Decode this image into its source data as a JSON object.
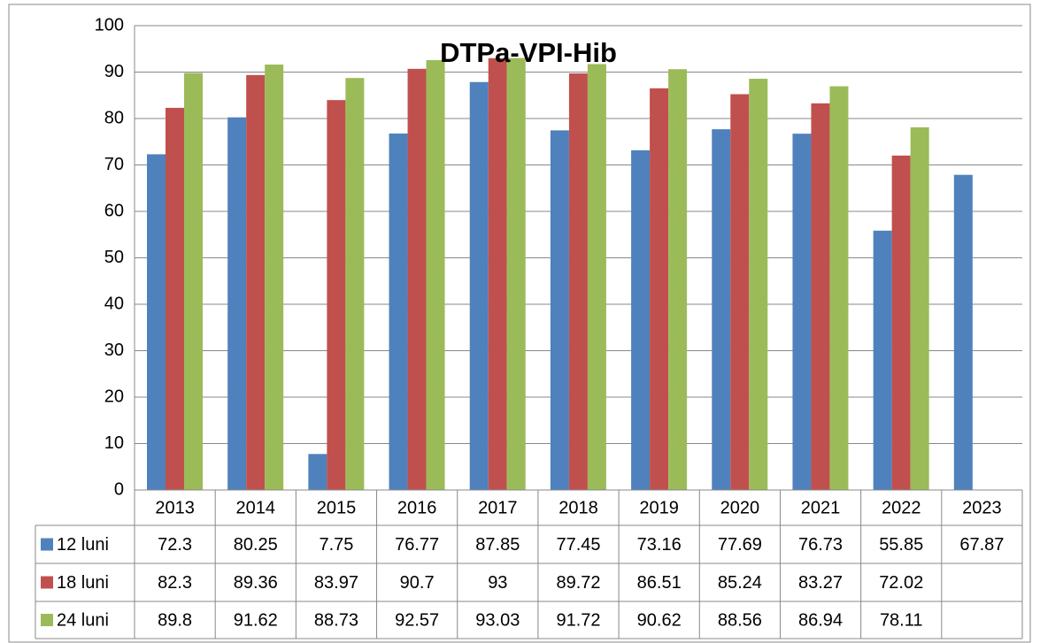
{
  "chart_data": {
    "type": "bar",
    "title": "DTPa-VPI-Hib",
    "categories": [
      "2013",
      "2014",
      "2015",
      "2016",
      "2017",
      "2018",
      "2019",
      "2020",
      "2021",
      "2022",
      "2023"
    ],
    "series": [
      {
        "name": "12 luni",
        "color": "#4f81bd",
        "values": [
          72.3,
          80.25,
          7.75,
          76.77,
          87.85,
          77.45,
          73.16,
          77.69,
          76.73,
          55.85,
          67.87
        ]
      },
      {
        "name": "18 luni",
        "color": "#c0504d",
        "values": [
          82.3,
          89.36,
          83.97,
          90.7,
          93,
          89.72,
          86.51,
          85.24,
          83.27,
          72.02,
          null
        ]
      },
      {
        "name": "24 luni",
        "color": "#9bbb59",
        "values": [
          89.8,
          91.62,
          88.73,
          92.57,
          93.03,
          91.72,
          90.62,
          88.56,
          86.94,
          78.11,
          null
        ]
      }
    ],
    "ylim": [
      0,
      100
    ],
    "yticks": [
      0,
      10,
      20,
      30,
      40,
      50,
      60,
      70,
      80,
      90,
      100
    ],
    "grid": true
  }
}
